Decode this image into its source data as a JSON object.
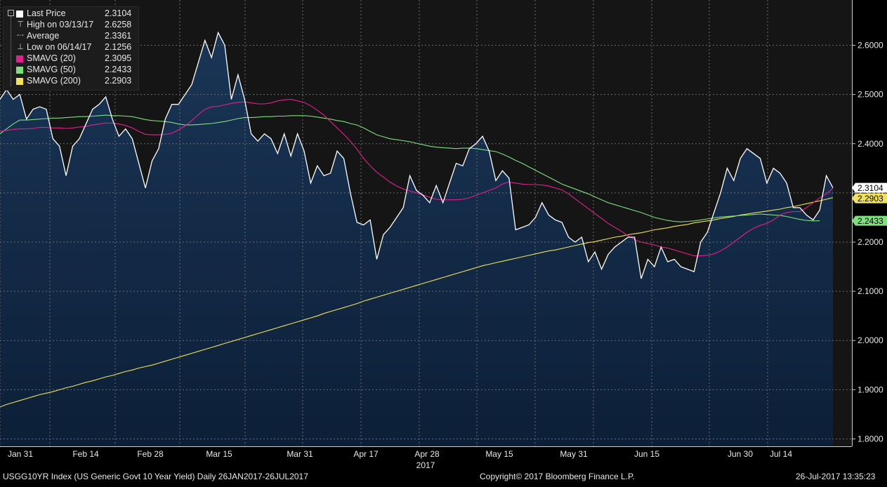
{
  "legend": {
    "items": [
      {
        "label": "Last Price",
        "value": "2.3104",
        "color": "#ffffff",
        "marker": "square"
      },
      {
        "label": "High on 03/13/17",
        "value": "2.6258",
        "marker": "high"
      },
      {
        "label": "Average",
        "value": "2.3361",
        "marker": "average"
      },
      {
        "label": "Low on 06/14/17",
        "value": "2.1256",
        "marker": "low"
      },
      {
        "label": "SMAVG (20)",
        "value": "2.3095",
        "color": "#e0208c",
        "marker": "square"
      },
      {
        "label": "SMAVG (50)",
        "value": "2.2433",
        "color": "#7de07d",
        "marker": "square"
      },
      {
        "label": "SMAVG (200)",
        "value": "2.2903",
        "color": "#f2e15a",
        "marker": "square"
      }
    ]
  },
  "footer": {
    "left": "USGG10YR Index (US Generic Govt 10 Year Yield)  Daily 26JAN2017-26JUL2017",
    "center": "Copyright© 2017 Bloomberg Finance L.P.",
    "right": "26-Jul-2017 13:35:23"
  },
  "chart_data": {
    "type": "area",
    "x_tick_labels": [
      "Jan 31",
      "Feb 14",
      "Feb 28",
      "Mar 15",
      "Mar 31",
      "Apr 17",
      "Apr 28",
      "May 15",
      "May 31",
      "Jun 15",
      "Jun 30",
      "Jul 14"
    ],
    "x_sublabel": "2017",
    "y_ticks": [
      "1.8000",
      "1.9000",
      "2.0000",
      "2.1000",
      "2.2000",
      "2.3000",
      "2.4000",
      "2.5000",
      "2.6000"
    ],
    "ylim": [
      1.785,
      2.692
    ],
    "grid": true,
    "legend_position": "top-left",
    "colors": {
      "area_top": "#1a3556",
      "area_bottom": "#0c1f37",
      "last_price_line": "#ffffff",
      "sma20": "#e0208c",
      "sma50": "#7de07d",
      "sma200": "#f2e15a",
      "background": "#151515"
    },
    "end_value_tags": [
      {
        "text": "2.3104",
        "value": 2.3104,
        "bg": "#ffffff",
        "fg": "#000000"
      },
      {
        "text": "2.2903",
        "value": 2.2903,
        "bg": "#f2e15a",
        "fg": "#000000"
      },
      {
        "text": "2.2433",
        "value": 2.2433,
        "bg": "#7de07d",
        "fg": "#000000"
      }
    ],
    "series": [
      {
        "name": "Last Price",
        "values": [
          2.49,
          2.51,
          2.49,
          2.5,
          2.45,
          2.47,
          2.475,
          2.47,
          2.41,
          2.395,
          2.335,
          2.395,
          2.41,
          2.44,
          2.47,
          2.48,
          2.495,
          2.45,
          2.415,
          2.43,
          2.41,
          2.36,
          2.31,
          2.365,
          2.39,
          2.45,
          2.48,
          2.48,
          2.5,
          2.52,
          2.565,
          2.61,
          2.575,
          2.6258,
          2.6,
          2.49,
          2.54,
          2.49,
          2.42,
          2.405,
          2.42,
          2.41,
          2.38,
          2.42,
          2.375,
          2.42,
          2.385,
          2.32,
          2.355,
          2.335,
          2.34,
          2.385,
          2.37,
          2.3,
          2.24,
          2.235,
          2.245,
          2.165,
          2.215,
          2.23,
          2.25,
          2.27,
          2.335,
          2.305,
          2.295,
          2.28,
          2.315,
          2.28,
          2.32,
          2.36,
          2.355,
          2.39,
          2.4,
          2.415,
          2.385,
          2.325,
          2.345,
          2.33,
          2.225,
          2.23,
          2.235,
          2.25,
          2.28,
          2.255,
          2.245,
          2.24,
          2.21,
          2.2,
          2.21,
          2.16,
          2.18,
          2.145,
          2.175,
          2.19,
          2.2,
          2.21,
          2.21,
          2.1256,
          2.165,
          2.15,
          2.19,
          2.16,
          2.165,
          2.15,
          2.145,
          2.14,
          2.2,
          2.22,
          2.26,
          2.3,
          2.35,
          2.325,
          2.37,
          2.39,
          2.38,
          2.37,
          2.32,
          2.35,
          2.34,
          2.32,
          2.27,
          2.27,
          2.255,
          2.245,
          2.265,
          2.335,
          2.3104
        ]
      },
      {
        "name": "SMAVG (20)",
        "values": [
          2.425,
          2.427,
          2.429,
          2.43,
          2.43,
          2.431,
          2.433,
          2.433,
          2.432,
          2.432,
          2.431,
          2.432,
          2.434,
          2.435,
          2.438,
          2.44,
          2.442,
          2.442,
          2.44,
          2.437,
          2.432,
          2.425,
          2.419,
          2.418,
          2.418,
          2.419,
          2.421,
          2.428,
          2.436,
          2.447,
          2.459,
          2.47,
          2.475,
          2.476,
          2.479,
          2.482,
          2.484,
          2.485,
          2.483,
          2.481,
          2.481,
          2.483,
          2.487,
          2.489,
          2.49,
          2.487,
          2.484,
          2.477,
          2.468,
          2.458,
          2.445,
          2.432,
          2.419,
          2.405,
          2.389,
          2.37,
          2.355,
          2.342,
          2.332,
          2.322,
          2.314,
          2.308,
          2.304,
          2.3,
          2.296,
          2.291,
          2.287,
          2.286,
          2.286,
          2.286,
          2.287,
          2.29,
          2.295,
          2.3,
          2.305,
          2.31,
          2.318,
          2.322,
          2.32,
          2.318,
          2.317,
          2.317,
          2.316,
          2.314,
          2.31,
          2.306,
          2.298,
          2.288,
          2.278,
          2.268,
          2.258,
          2.248,
          2.238,
          2.23,
          2.222,
          2.213,
          2.205,
          2.2,
          2.197,
          2.194,
          2.19,
          2.188,
          2.184,
          2.18,
          2.176,
          2.172,
          2.172,
          2.173,
          2.176,
          2.182,
          2.19,
          2.2,
          2.21,
          2.22,
          2.228,
          2.234,
          2.238,
          2.245,
          2.255,
          2.26,
          2.262,
          2.262,
          2.27,
          2.28,
          2.29,
          2.298,
          2.3095
        ]
      },
      {
        "name": "SMAVG (50)",
        "values": [
          2.42,
          2.43,
          2.44,
          2.448,
          2.448,
          2.449,
          2.45,
          2.451,
          2.452,
          2.452,
          2.453,
          2.454,
          2.455,
          2.455,
          2.456,
          2.457,
          2.458,
          2.457,
          2.457,
          2.456,
          2.455,
          2.452,
          2.449,
          2.447,
          2.446,
          2.445,
          2.443,
          2.44,
          2.438,
          2.438,
          2.439,
          2.44,
          2.441,
          2.443,
          2.445,
          2.448,
          2.451,
          2.453,
          2.453,
          2.454,
          2.455,
          2.455,
          2.456,
          2.456,
          2.457,
          2.457,
          2.457,
          2.456,
          2.454,
          2.452,
          2.45,
          2.447,
          2.445,
          2.441,
          2.438,
          2.432,
          2.425,
          2.418,
          2.414,
          2.41,
          2.408,
          2.406,
          2.404,
          2.401,
          2.398,
          2.395,
          2.393,
          2.392,
          2.391,
          2.39,
          2.391,
          2.391,
          2.39,
          2.388,
          2.386,
          2.384,
          2.379,
          2.373,
          2.366,
          2.36,
          2.353,
          2.346,
          2.339,
          2.332,
          2.325,
          2.318,
          2.313,
          2.308,
          2.303,
          2.298,
          2.292,
          2.286,
          2.28,
          2.276,
          2.272,
          2.268,
          2.264,
          2.26,
          2.255,
          2.25,
          2.247,
          2.244,
          2.242,
          2.241,
          2.242,
          2.243,
          2.245,
          2.247,
          2.249,
          2.251,
          2.252,
          2.253,
          2.254,
          2.255,
          2.256,
          2.257,
          2.256,
          2.255,
          2.254,
          2.252,
          2.249,
          2.246,
          2.244,
          2.243,
          2.2433
        ]
      },
      {
        "name": "SMAVG (200)",
        "values": [
          1.865,
          1.87,
          1.874,
          1.878,
          1.882,
          1.886,
          1.89,
          1.893,
          1.896,
          1.9,
          1.904,
          1.907,
          1.911,
          1.915,
          1.918,
          1.922,
          1.926,
          1.929,
          1.933,
          1.937,
          1.94,
          1.944,
          1.947,
          1.95,
          1.954,
          1.958,
          1.962,
          1.966,
          1.97,
          1.974,
          1.978,
          1.982,
          1.986,
          1.99,
          1.994,
          1.998,
          2.002,
          2.006,
          2.01,
          2.014,
          2.018,
          2.022,
          2.026,
          2.03,
          2.034,
          2.038,
          2.042,
          2.046,
          2.05,
          2.055,
          2.059,
          2.063,
          2.067,
          2.071,
          2.075,
          2.08,
          2.084,
          2.088,
          2.092,
          2.096,
          2.1,
          2.104,
          2.108,
          2.112,
          2.116,
          2.12,
          2.124,
          2.128,
          2.132,
          2.136,
          2.14,
          2.144,
          2.148,
          2.152,
          2.155,
          2.158,
          2.161,
          2.164,
          2.167,
          2.17,
          2.173,
          2.176,
          2.179,
          2.182,
          2.184,
          2.187,
          2.19,
          2.193,
          2.196,
          2.199,
          2.201,
          2.204,
          2.207,
          2.21,
          2.212,
          2.215,
          2.217,
          2.219,
          2.222,
          2.225,
          2.227,
          2.229,
          2.232,
          2.234,
          2.236,
          2.239,
          2.241,
          2.243,
          2.245,
          2.248,
          2.25,
          2.252,
          2.255,
          2.257,
          2.259,
          2.261,
          2.263,
          2.265,
          2.267,
          2.27,
          2.272,
          2.275,
          2.278,
          2.281,
          2.284,
          2.287,
          2.2903
        ]
      }
    ]
  }
}
